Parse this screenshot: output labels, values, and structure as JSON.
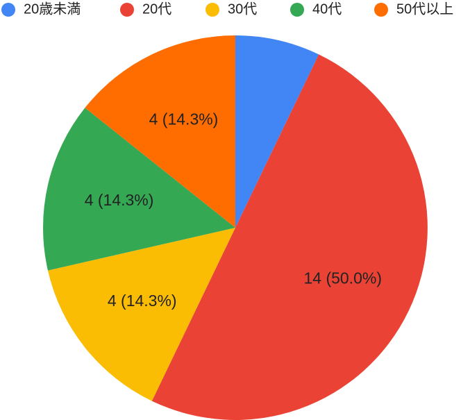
{
  "chart_data": {
    "type": "pie",
    "categories": [
      "20歳未満",
      "20代",
      "30代",
      "40代",
      "50代以上"
    ],
    "values": [
      2,
      14,
      4,
      4,
      4
    ],
    "value_labels": [
      null,
      "14 (50.0%)",
      "4 (14.3%)",
      "4 (14.3%)",
      "4 (14.3%)"
    ],
    "colors": [
      "#4285f4",
      "#ea4335",
      "#fbbc04",
      "#34a853",
      "#ff6d01"
    ],
    "legend": "top"
  }
}
